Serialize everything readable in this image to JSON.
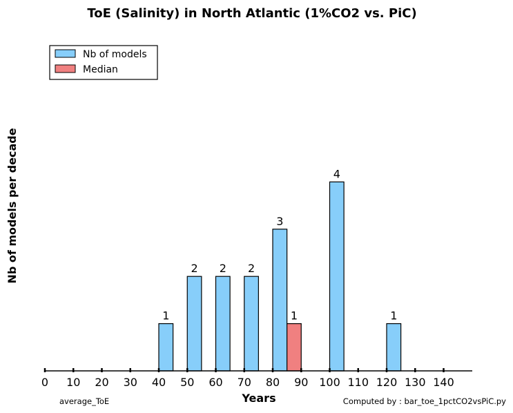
{
  "chart_data": {
    "type": "bar",
    "title": "ToE (Salinity) in North Atlantic (1%CO2 vs. PiC)",
    "xlabel": "Years",
    "ylabel": "Nb of models per decade",
    "xlim": [
      0,
      150
    ],
    "ylim": [
      0,
      6
    ],
    "x_ticks": [
      0,
      10,
      20,
      30,
      40,
      50,
      60,
      70,
      80,
      90,
      100,
      110,
      120,
      130,
      140
    ],
    "legend_position": "top-left",
    "grid": false,
    "series": [
      {
        "name": "Nb of models",
        "color": "#87CEFA",
        "bins": [
          [
            40,
            45
          ],
          [
            50,
            55
          ],
          [
            60,
            65
          ],
          [
            70,
            75
          ],
          [
            80,
            85
          ],
          [
            100,
            105
          ],
          [
            120,
            125
          ]
        ],
        "values": [
          1,
          2,
          2,
          2,
          3,
          4,
          1
        ],
        "data_labels": [
          "1",
          "2",
          "2",
          "2",
          "3",
          "4",
          "1"
        ]
      },
      {
        "name": "Median",
        "color": "#F08080",
        "bins": [
          [
            85,
            90
          ]
        ],
        "values": [
          1
        ],
        "data_labels": [
          "1"
        ]
      }
    ]
  },
  "footnotes": {
    "left": "average_ToE",
    "right": "Computed by : bar_toe_1pctCO2vsPiC.py"
  }
}
